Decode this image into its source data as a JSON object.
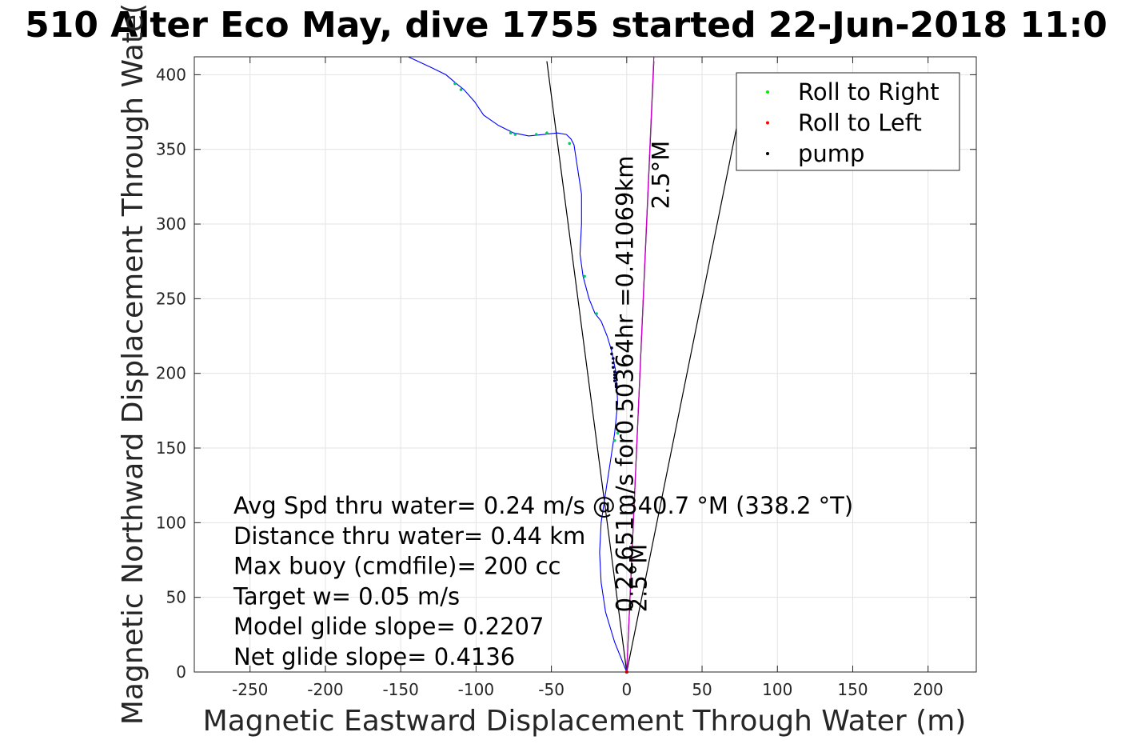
{
  "chart_data": {
    "type": "line",
    "title": "510 Alter Eco May, dive 1755 started 22-Jun-2018 11:0",
    "xlabel": "Magnetic Eastward Displacement Through Water (m)",
    "ylabel": "Magnetic Northward Displacement Through Wate(",
    "xlim": [
      -287,
      232
    ],
    "ylim": [
      0,
      412
    ],
    "xticks": [
      -250,
      -200,
      -150,
      -100,
      -50,
      0,
      50,
      100,
      150,
      200
    ],
    "yticks": [
      0,
      50,
      100,
      150,
      200,
      250,
      300,
      350,
      400
    ],
    "grid": true,
    "legend_position": "top-right",
    "legend": [
      {
        "label": "Roll to Right",
        "color": "#00ee00"
      },
      {
        "label": "Roll to Left",
        "color": "#ff0000"
      },
      {
        "label": "pump",
        "color": "#000000"
      }
    ],
    "series": [
      {
        "color": "#0000ff",
        "x": [
          0,
          -8,
          -14,
          -17,
          -18,
          -17,
          -14,
          -11,
          -8,
          -6,
          -7,
          -10,
          -13,
          -17,
          -21,
          -25,
          -29,
          -31,
          -30,
          -30,
          -33,
          -35,
          -37,
          -40,
          -46,
          -55,
          -65,
          -75,
          -85,
          -95,
          -101,
          -108,
          -113,
          -120,
          -130,
          -145
        ],
        "y": [
          0,
          20,
          40,
          60,
          80,
          100,
          120,
          140,
          160,
          180,
          200,
          215,
          225,
          235,
          240,
          250,
          265,
          280,
          300,
          320,
          340,
          353,
          357,
          360,
          361,
          360,
          359,
          361,
          366,
          373,
          382,
          390,
          394,
          400,
          405,
          412
        ]
      }
    ],
    "roll_right": {
      "x": [
        -114,
        -110,
        -77,
        -74,
        -60,
        -53,
        -38,
        -28,
        -20,
        -6,
        -8
      ],
      "y": [
        394,
        390,
        361,
        360,
        360,
        361,
        354,
        265,
        240,
        160,
        155
      ]
    },
    "roll_left": {
      "x": [
        0
      ],
      "y": [
        0
      ]
    },
    "pump": {
      "x": [
        -10,
        -10,
        -9,
        -9,
        -9,
        -8,
        -8,
        -8,
        -8,
        -7,
        -7,
        -7
      ],
      "y": [
        217,
        213,
        210,
        207,
        204,
        201,
        199,
        197,
        195,
        193,
        192,
        191
      ]
    },
    "reference_lines": [
      {
        "color": "#000000",
        "x": [
          0,
          -53
        ],
        "y": [
          0,
          409
        ]
      },
      {
        "color": "#000000",
        "x": [
          0,
          18
        ],
        "y": [
          0,
          409
        ]
      },
      {
        "color": "#000000",
        "x": [
          0,
          80
        ],
        "y": [
          0,
          400
        ]
      },
      {
        "color": "#cc00cc",
        "x": [
          0,
          18
        ],
        "y": [
          0,
          412
        ]
      }
    ],
    "annotations": [
      {
        "text": "0.22651m/s for0.50364hr =0.41069km",
        "x": 4,
        "y": 40,
        "rotation": -90
      },
      {
        "text": "2.5°M",
        "x": 13,
        "y": 40,
        "rotation": -90
      },
      {
        "text": "2.5°M",
        "x": 28,
        "y": 310,
        "rotation": -90
      }
    ],
    "stats_lines": [
      "Avg Spd thru water=  0.24 m/s @ 340.7 °M (338.2 °T)",
      "Distance thru water=  0.44 km",
      "Max buoy (cmdfile)= 200 cc",
      "Target w= 0.05 m/s",
      "Model glide slope= 0.2207",
      "Net glide slope= 0.4136"
    ]
  }
}
